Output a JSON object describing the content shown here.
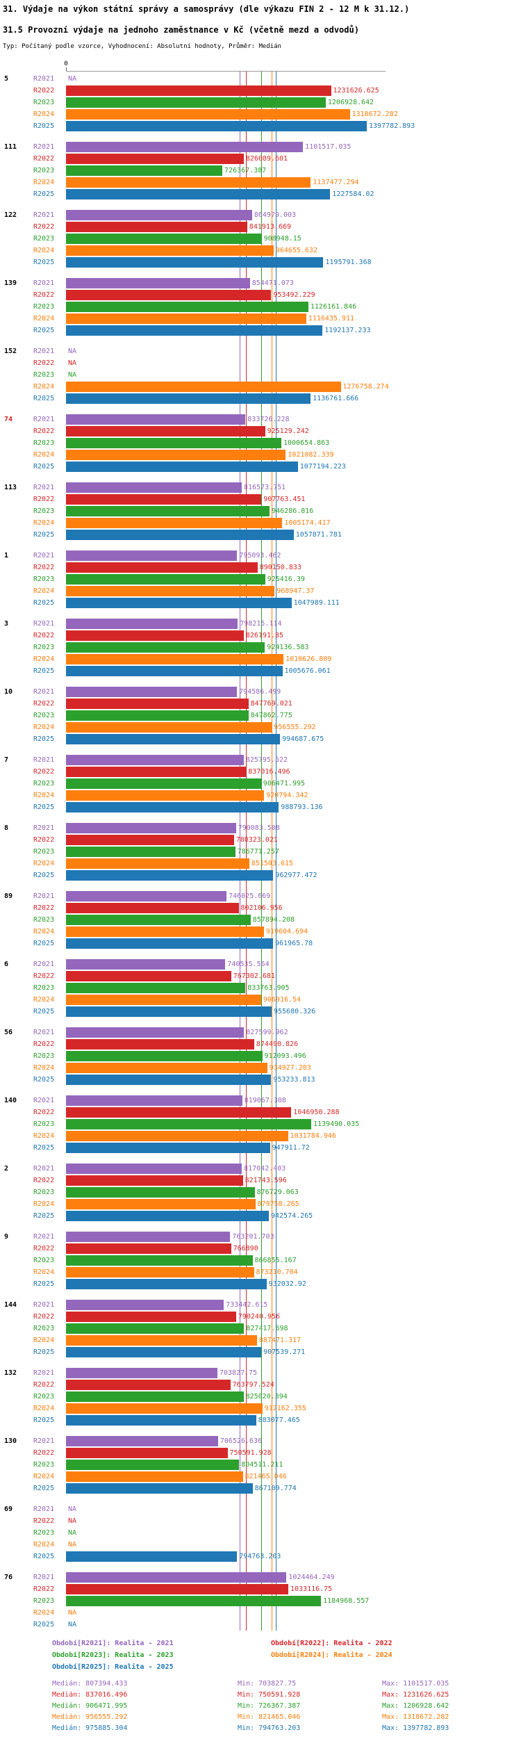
{
  "page": {
    "title": "31. Výdaje na výkon státní správy a samosprávy (dle výkazu FIN 2 - 12 M k 31.12.)",
    "subtitle": "31.5 Provozní výdaje na jednoho zaměstnance v Kč (včetně mezd a odvodů)",
    "meta_line": "Typ: Počítaný podle vzorce, Vyhodnocení: Absolutní hodnoty, Průměr: Medián"
  },
  "chart_data": {
    "type": "bar",
    "orientation": "horizontal",
    "axis_origin_label": "0",
    "x_axis": {
      "min": 0,
      "max_value_shown": 1397782.893,
      "grid": false
    },
    "na_text": "NA",
    "highlight_group": "74",
    "highlight_color": "#d62728",
    "series": [
      {
        "name": "R2021",
        "legend": "Období[R2021]: Realita - 2021",
        "color": "#9467bd"
      },
      {
        "name": "R2022",
        "legend": "Období[R2022]: Realita - 2022",
        "color": "#d62728"
      },
      {
        "name": "R2023",
        "legend": "Období[R2023]: Realita - 2023",
        "color": "#2ca02c"
      },
      {
        "name": "R2024",
        "legend": "Období[R2024]: Realita - 2024",
        "color": "#ff7f0e"
      },
      {
        "name": "R2025",
        "legend": "Období[R2025]: Realita - 2025",
        "color": "#1f77b4"
      }
    ],
    "medians": {
      "R2021": 807394.433,
      "R2022": 837016.496,
      "R2023": 906471.995,
      "R2024": 956555.292,
      "R2025": 975885.304
    },
    "groups": [
      {
        "label": "5",
        "highlight": false,
        "values": [
          "NA",
          "1231626.625",
          "1206928.642",
          "1318672.282",
          "1397782.893"
        ]
      },
      {
        "label": "111",
        "highlight": false,
        "values": [
          "1101517.035",
          "826089.601",
          "726367.387",
          "1137477.294",
          "1227584.02"
        ]
      },
      {
        "label": "122",
        "highlight": false,
        "values": [
          "864979.003",
          "841913.669",
          "908948.15",
          "964655.632",
          "1195791.368"
        ]
      },
      {
        "label": "139",
        "highlight": false,
        "values": [
          "854471.073",
          "953492.229",
          "1126161.846",
          "1116435.911",
          "1192137.233"
        ]
      },
      {
        "label": "152",
        "highlight": false,
        "values": [
          "NA",
          "NA",
          "NA",
          "1276758.274",
          "1136761.666"
        ]
      },
      {
        "label": "74",
        "highlight": true,
        "values": [
          "833726.228",
          "925129.242",
          "1000654.863",
          "1021082.339",
          "1077194.223"
        ]
      },
      {
        "label": "113",
        "highlight": false,
        "values": [
          "816573.751",
          "907763.451",
          "946286.816",
          "1005174.417",
          "1057871.781"
        ]
      },
      {
        "label": "1",
        "highlight": false,
        "values": [
          "795093.462",
          "890150.833",
          "925416.39",
          "968947.37",
          "1047989.111"
        ]
      },
      {
        "label": "3",
        "highlight": false,
        "values": [
          "798215.114",
          "826191.85",
          "924136.583",
          "1010626.809",
          "1005676.061"
        ]
      },
      {
        "label": "10",
        "highlight": false,
        "values": [
          "794586.499",
          "847769.021",
          "847862.775",
          "956555.292",
          "994687.675"
        ]
      },
      {
        "label": "7",
        "highlight": false,
        "values": [
          "825795.522",
          "837016.496",
          "906471.995",
          "920794.342",
          "988793.136"
        ]
      },
      {
        "label": "8",
        "highlight": false,
        "values": [
          "790083.508",
          "780323.021",
          "786771.257",
          "851503.615",
          "962977.472"
        ]
      },
      {
        "label": "89",
        "highlight": false,
        "values": [
          "746025.669",
          "802106.956",
          "857894.208",
          "919604.694",
          "961965.78"
        ]
      },
      {
        "label": "6",
        "highlight": false,
        "values": [
          "740535.564",
          "767302.681",
          "833763.905",
          "906916.54",
          "955680.326"
        ]
      },
      {
        "label": "56",
        "highlight": false,
        "values": [
          "827599.962",
          "874490.826",
          "912093.496",
          "934927.203",
          "953233.813"
        ]
      },
      {
        "label": "140",
        "highlight": false,
        "values": [
          "819067.308",
          "1046950.288",
          "1139490.035",
          "1031784.946",
          "947911.72"
        ]
      },
      {
        "label": "2",
        "highlight": false,
        "values": [
          "817042.403",
          "821743.596",
          "876729.063",
          "879758.265",
          "942574.265"
        ]
      },
      {
        "label": "9",
        "highlight": false,
        "values": [
          "763201.703",
          "766890",
          "866855.167",
          "873210.704",
          "932032.92"
        ]
      },
      {
        "label": "144",
        "highlight": false,
        "values": [
          "733442.615",
          "790240.956",
          "827417.698",
          "887471.317",
          "907539.271"
        ]
      },
      {
        "label": "132",
        "highlight": false,
        "values": [
          "703827.75",
          "763797.524",
          "825020.394",
          "912162.355",
          "883077.465"
        ]
      },
      {
        "label": "130",
        "highlight": false,
        "values": [
          "706526.636",
          "750591.928",
          "804511.211",
          "821465.046",
          "867109.774"
        ]
      },
      {
        "label": "69",
        "highlight": false,
        "values": [
          "NA",
          "NA",
          "NA",
          "NA",
          "794763.203"
        ]
      },
      {
        "label": "76",
        "highlight": false,
        "values": [
          "1024464.249",
          "1033116.75",
          "1184968.557",
          "NA",
          "NA"
        ]
      }
    ]
  },
  "footer": {
    "stats": [
      {
        "series": "R2021",
        "median": "Medián: 807394.433",
        "min": "Min: 703827.75",
        "max": "Max: 1101517.035"
      },
      {
        "series": "R2022",
        "median": "Medián: 837016.496",
        "min": "Min: 750591.928",
        "max": "Max: 1231626.625"
      },
      {
        "series": "R2023",
        "median": "Medián: 906471.995",
        "min": "Min: 726367.387",
        "max": "Max: 1206928.642"
      },
      {
        "series": "R2024",
        "median": "Medián: 956555.292",
        "min": "Min: 821465.046",
        "max": "Max: 1318672.282"
      },
      {
        "series": "R2025",
        "median": "Medián: 975885.304",
        "min": "Min: 794763.203",
        "max": "Max: 1397782.893"
      }
    ]
  }
}
